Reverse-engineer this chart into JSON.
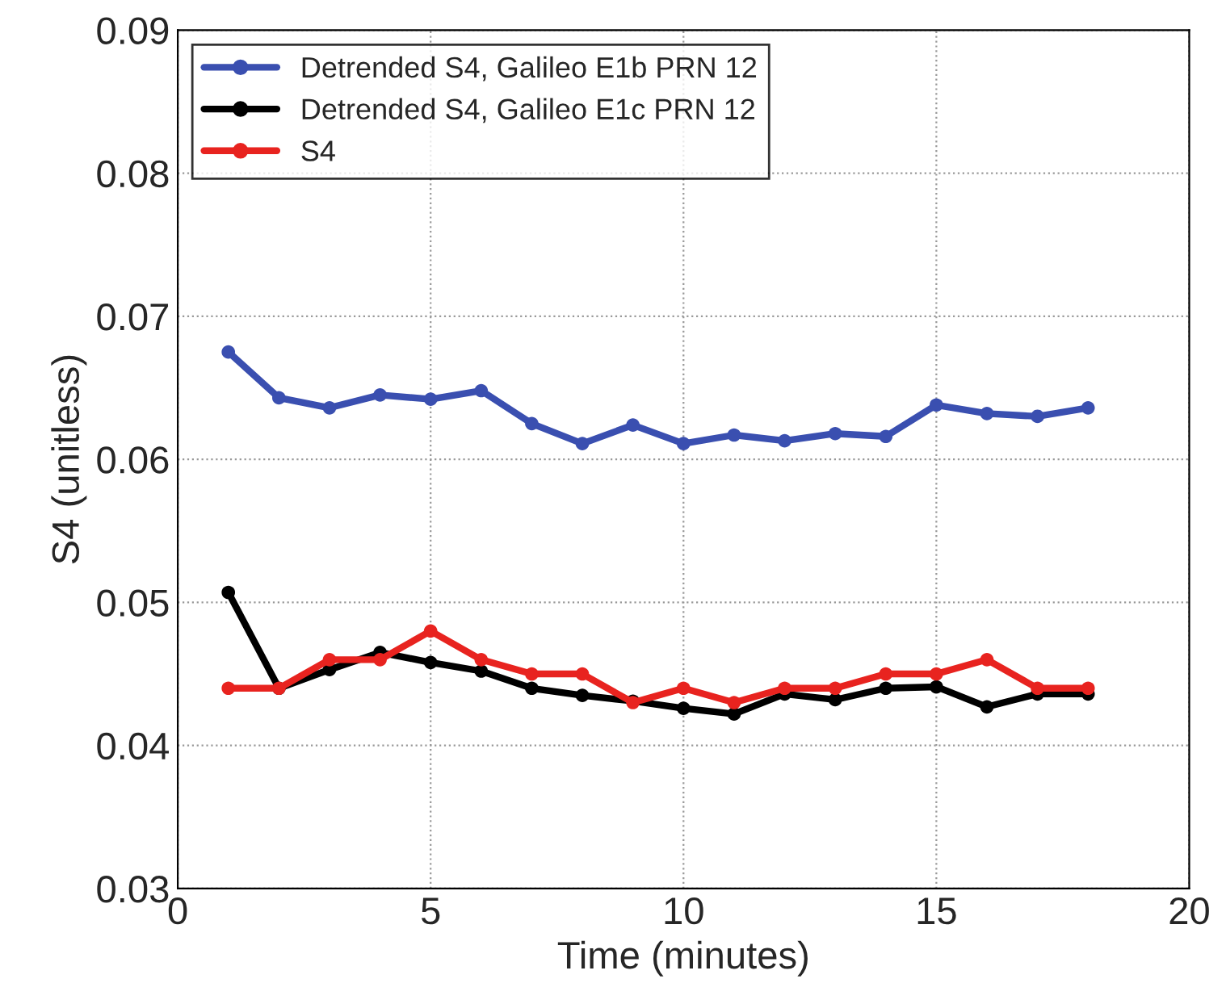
{
  "chart_data": {
    "type": "line",
    "xlabel": "Time (minutes)",
    "ylabel": "S4 (unitless)",
    "x": [
      1,
      2,
      3,
      4,
      5,
      6,
      7,
      8,
      9,
      10,
      11,
      12,
      13,
      14,
      15,
      16,
      17,
      18
    ],
    "series": [
      {
        "name": "Detrended S4, Galileo E1b PRN 12",
        "color": "#3a4fb0",
        "values": [
          0.0675,
          0.0643,
          0.0636,
          0.0645,
          0.0642,
          0.0648,
          0.0625,
          0.0611,
          0.0624,
          0.0611,
          0.0617,
          0.0613,
          0.0618,
          0.0616,
          0.0638,
          0.0632,
          0.063,
          0.0636
        ]
      },
      {
        "name": "Detrended S4, Galileo E1c PRN 12",
        "color": "#000000",
        "values": [
          0.0507,
          0.044,
          0.0453,
          0.0465,
          0.0458,
          0.0452,
          0.044,
          0.0435,
          0.0431,
          0.0426,
          0.0422,
          0.0436,
          0.0432,
          0.044,
          0.0441,
          0.0427,
          0.0436,
          0.0436
        ]
      },
      {
        "name": "S4",
        "color": "#e8231f",
        "values": [
          0.044,
          0.044,
          0.046,
          0.046,
          0.048,
          0.046,
          0.045,
          0.045,
          0.043,
          0.044,
          0.043,
          0.044,
          0.044,
          0.045,
          0.045,
          0.046,
          0.044,
          0.044
        ]
      }
    ],
    "xlim": [
      0,
      20
    ],
    "ylim": [
      0.03,
      0.09
    ],
    "xticks": [
      0,
      5,
      10,
      15,
      20
    ],
    "yticks": [
      {
        "value": 0.03,
        "label": "0.03"
      },
      {
        "value": 0.04,
        "label": "0.04"
      },
      {
        "value": 0.05,
        "label": "0.05"
      },
      {
        "value": 0.06,
        "label": "0.06"
      },
      {
        "value": 0.07,
        "label": "0.07"
      },
      {
        "value": 0.08,
        "label": "0.08"
      },
      {
        "value": 0.09,
        "label": "0.09"
      }
    ],
    "grid": true,
    "legend": "top left",
    "marker": "circle",
    "line_style": "solid"
  }
}
